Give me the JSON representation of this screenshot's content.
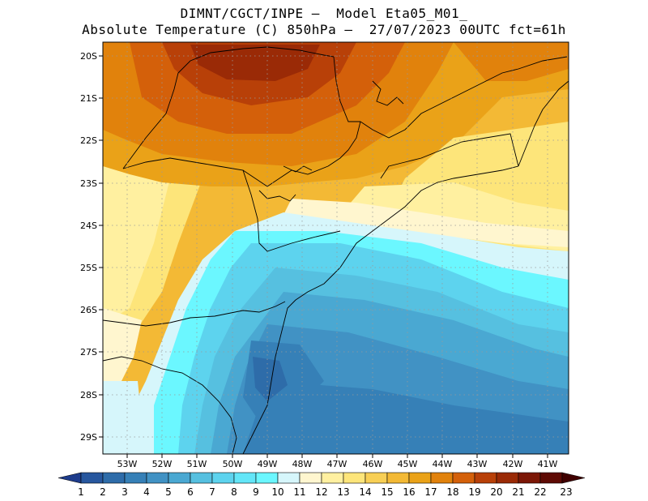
{
  "title": {
    "line1": "DIMNT/CGCT/INPE –  Model Eta05_M01_",
    "line2": "Absolute Temperature (C) 850hPa –  27/07/2023 00UTC fct=61h"
  },
  "axes": {
    "lat_labels": [
      "20S",
      "21S",
      "22S",
      "23S",
      "24S",
      "25S",
      "26S",
      "27S",
      "28S",
      "29S"
    ],
    "lon_labels": [
      "53W",
      "52W",
      "51W",
      "50W",
      "49W",
      "48W",
      "47W",
      "46W",
      "45W",
      "44W",
      "43W",
      "42W",
      "41W"
    ],
    "gridlines": "dotted"
  },
  "colorbar": {
    "labels": [
      "1",
      "2",
      "3",
      "4",
      "5",
      "6",
      "7",
      "8",
      "9",
      "10",
      "11",
      "12",
      "13",
      "14",
      "15",
      "16",
      "17",
      "18",
      "19",
      "20",
      "21",
      "22",
      "23"
    ],
    "colors": [
      "#1e3c8c",
      "#27579e",
      "#2e6ca9",
      "#3680b7",
      "#4192c4",
      "#4aa8d2",
      "#56c0e0",
      "#5dd3ee",
      "#63e6f8",
      "#6bf7ff",
      "#d6f6fb",
      "#fff6cf",
      "#fff0a0",
      "#fde57a",
      "#f8cf55",
      "#f3b935",
      "#eaa218",
      "#e1820c",
      "#d4600a",
      "#b84008",
      "#9a2a06",
      "#7c1706",
      "#5e0a04",
      "#400000"
    ]
  },
  "map": {
    "region": "Southeastern and Southern Brazil",
    "lat_range": [
      "20S",
      "29.5S"
    ],
    "lon_range": [
      "53.7W",
      "40.7W"
    ]
  }
}
